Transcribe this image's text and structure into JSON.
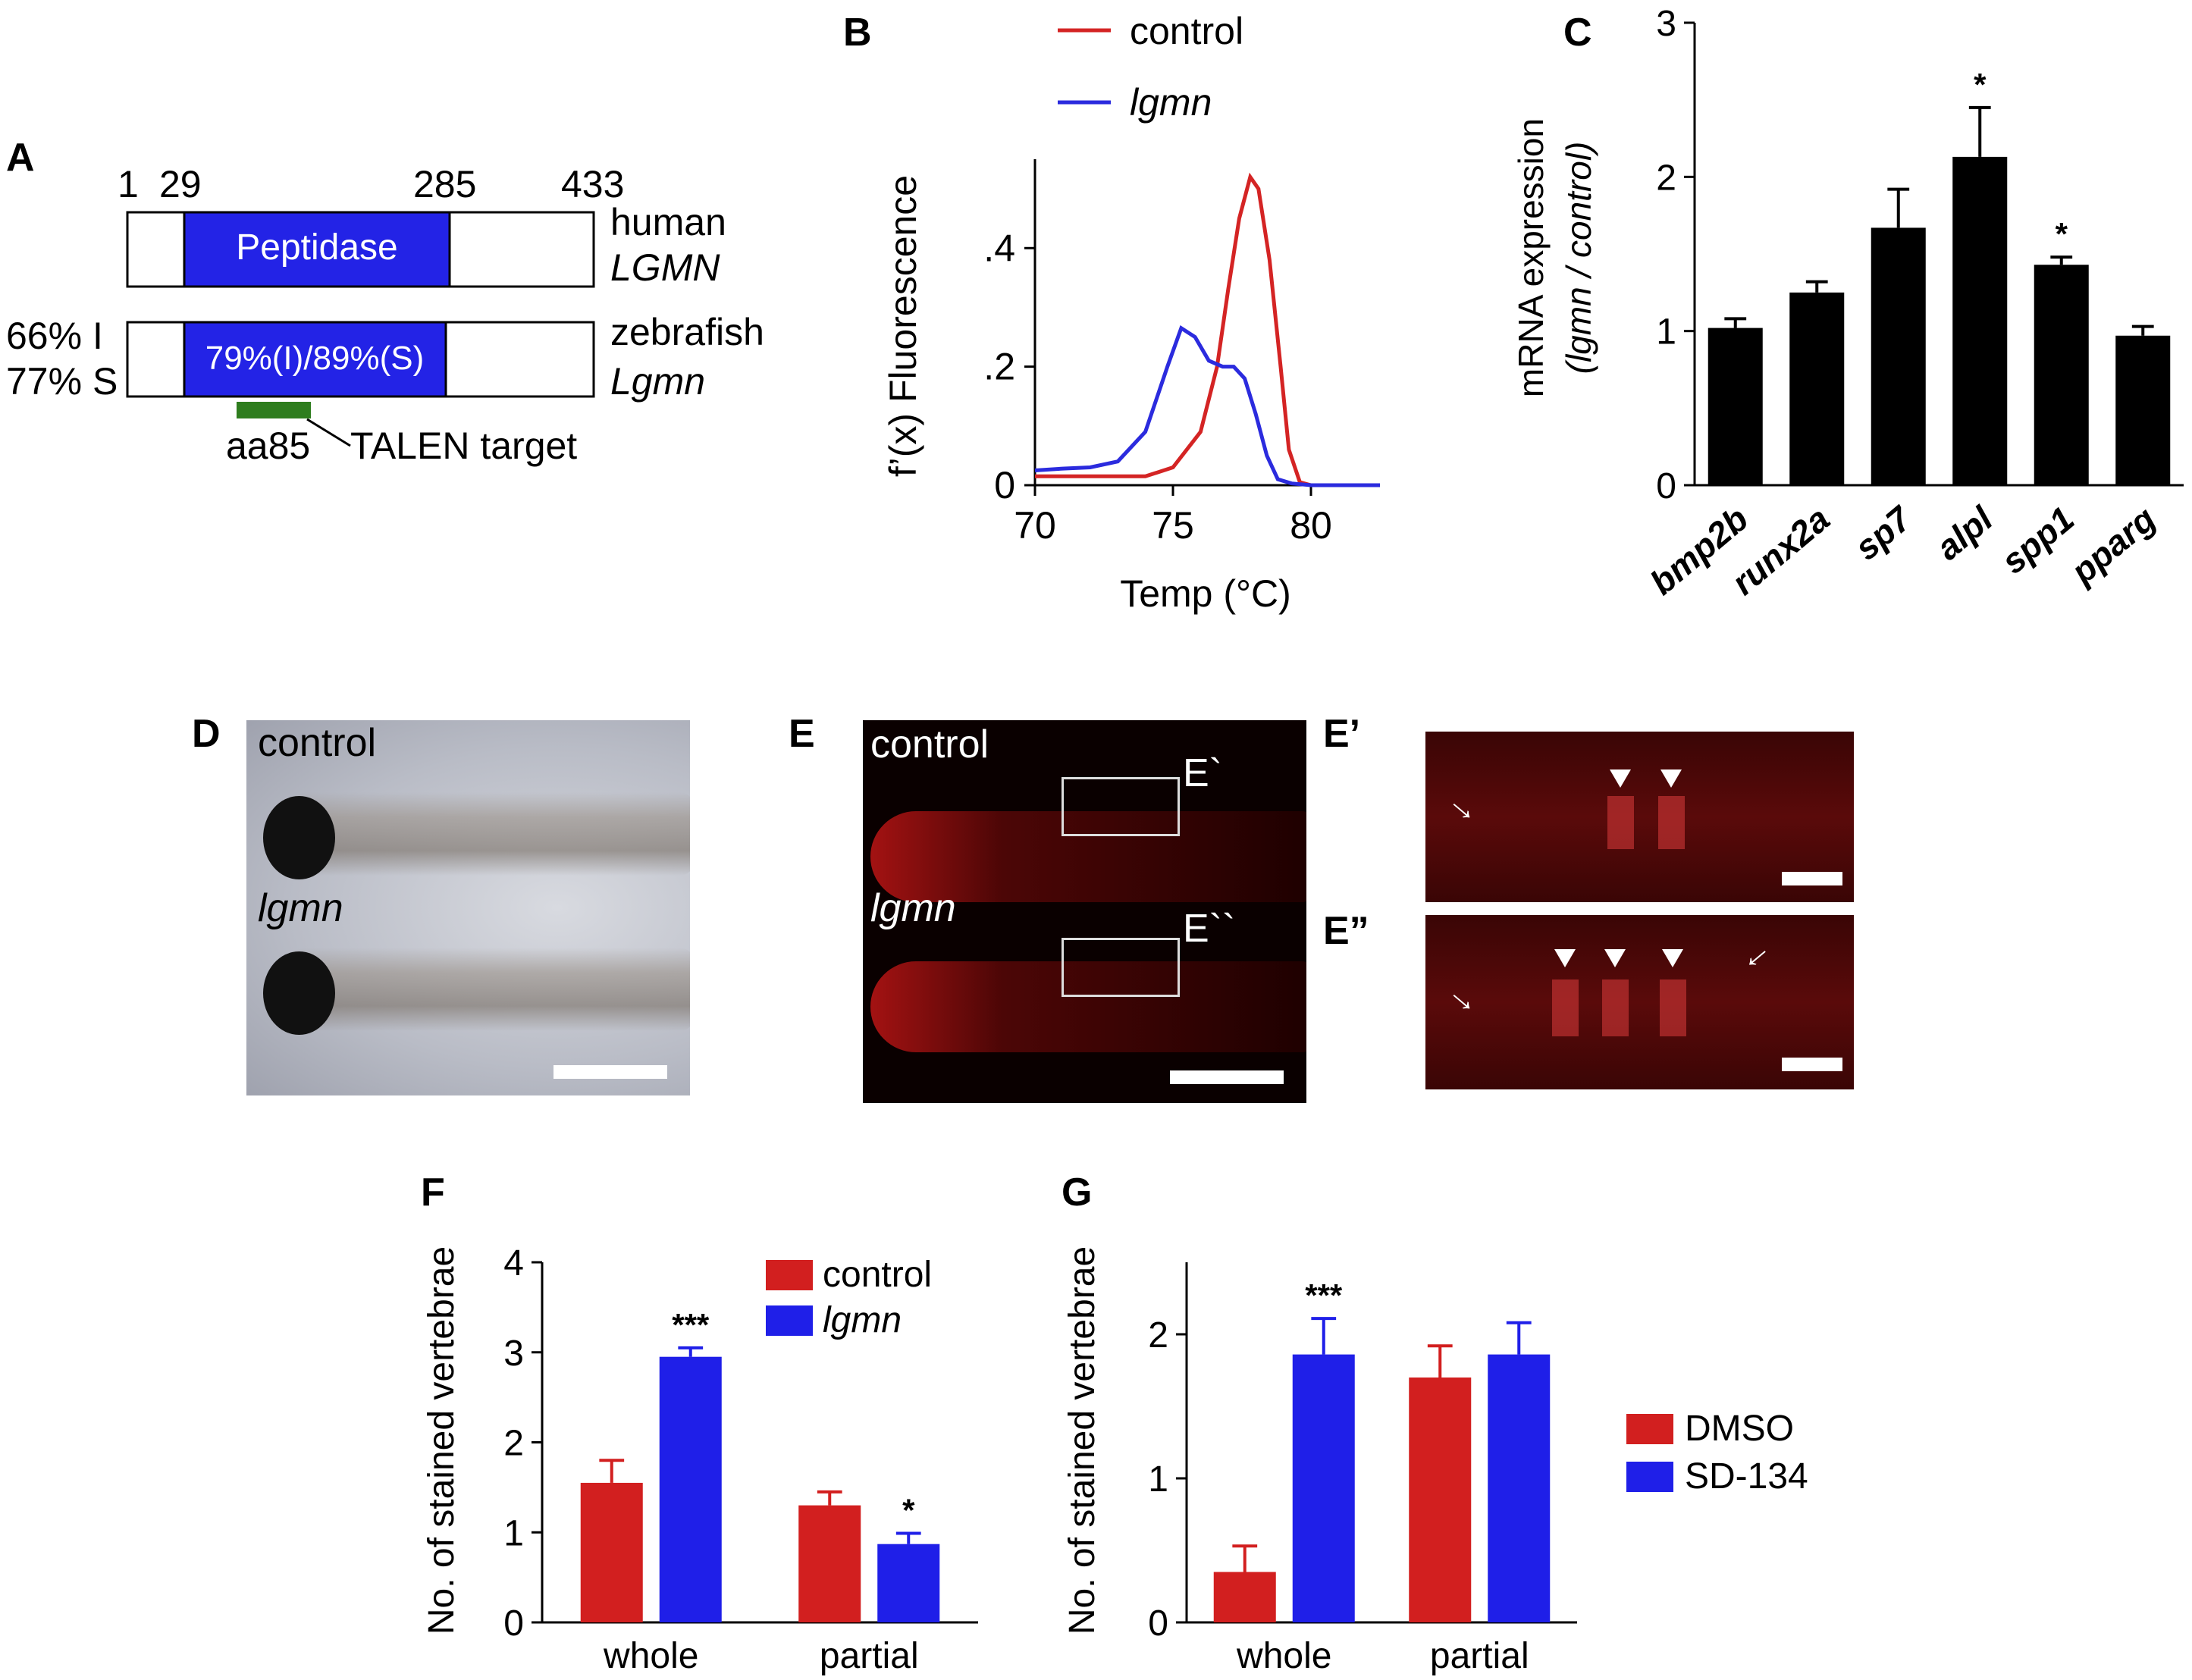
{
  "panels": {
    "A": "A",
    "B": "B",
    "C": "C",
    "D": "D",
    "E": "E",
    "Ep": "E’",
    "Epp": "E”",
    "F": "F",
    "G": "G"
  },
  "panel_a": {
    "positions": [
      "1",
      "29",
      "285",
      "433"
    ],
    "domain_human": "Peptidase",
    "domain_zebrafish": "79%(I)/89%(S)",
    "human_label_1": "human",
    "human_label_2": "LGMN",
    "zebrafish_label_1": "zebrafish",
    "zebrafish_label_2": "Lgmn",
    "identity": "66% I",
    "similarity": "77% S",
    "aa": "aa85",
    "talen": "TALEN target",
    "colors": {
      "domain": "#2323e6",
      "talen": "#2e7d1e"
    }
  },
  "photos": {
    "d_control": "control",
    "d_lgmn": "lgmn",
    "e_control": "control",
    "e_lgmn": "lgmn",
    "box1": "E`",
    "box2": "E``"
  },
  "chart_data": [
    {
      "panel": "B",
      "type": "line",
      "ylabel": "f’(x)  Fluorescence",
      "xlabel": "Temp (°C)",
      "xlim": [
        70,
        82.5
      ],
      "ylim": [
        0,
        0.55
      ],
      "xticks": [
        "70",
        "75",
        "80"
      ],
      "yticks": [
        "0",
        ".2",
        ".4"
      ],
      "legend_position": "top",
      "series": [
        {
          "name": "control",
          "color": "#d42424",
          "x": [
            70,
            72,
            74,
            75,
            76,
            76.6,
            77,
            77.4,
            77.8,
            78.1,
            78.5,
            78.9,
            79.2,
            79.6,
            80
          ],
          "y": [
            0.015,
            0.015,
            0.015,
            0.03,
            0.09,
            0.2,
            0.33,
            0.45,
            0.52,
            0.5,
            0.38,
            0.2,
            0.06,
            0.005,
            0
          ]
        },
        {
          "name": "lgmn",
          "color": "#2b2bde",
          "x": [
            70,
            71,
            72,
            73,
            74,
            74.8,
            75.3,
            75.8,
            76.3,
            76.8,
            77.2,
            77.6,
            78,
            78.4,
            78.8,
            79.3,
            80,
            81,
            82.5
          ],
          "y": [
            0.025,
            0.028,
            0.03,
            0.04,
            0.09,
            0.2,
            0.265,
            0.25,
            0.21,
            0.2,
            0.2,
            0.18,
            0.12,
            0.05,
            0.01,
            0.003,
            0,
            0,
            0
          ]
        }
      ]
    },
    {
      "panel": "C",
      "type": "bar",
      "ylabel": "mRNA expression",
      "ylabel2": "(lgmn / control)",
      "ylim": [
        0,
        3
      ],
      "yticks": [
        "0",
        "1",
        "2",
        "3"
      ],
      "categories": [
        "bmp2b",
        "runx2a",
        "sp7",
        "alpl",
        "spp1",
        "pparg"
      ],
      "values": [
        1.02,
        1.25,
        1.67,
        2.13,
        1.43,
        0.97
      ],
      "errors": [
        0.06,
        0.07,
        0.25,
        0.32,
        0.05,
        0.06
      ],
      "significance": [
        "",
        "",
        "",
        "*",
        "*",
        ""
      ],
      "color": "#000000"
    },
    {
      "panel": "F",
      "type": "bar",
      "ylabel": "No. of stained vertebrae",
      "ylim": [
        0,
        4
      ],
      "yticks": [
        "0",
        "1",
        "2",
        "3",
        "4"
      ],
      "categories": [
        "whole",
        "partial"
      ],
      "legend_position": "top-right",
      "series": [
        {
          "name": "control",
          "color": "#d21f1f",
          "values": [
            1.55,
            1.3
          ],
          "errors": [
            0.25,
            0.15
          ],
          "significance": [
            "",
            ""
          ]
        },
        {
          "name": "lgmn",
          "color": "#1f1fe8",
          "values": [
            2.95,
            0.87
          ],
          "errors": [
            0.1,
            0.12
          ],
          "significance": [
            "***",
            "*"
          ]
        }
      ]
    },
    {
      "panel": "G",
      "type": "bar",
      "ylabel": "No. of stained vertebrae",
      "ylim": [
        0,
        2.5
      ],
      "yticks": [
        "0",
        "1",
        "2"
      ],
      "categories": [
        "whole",
        "partial"
      ],
      "legend_position": "right",
      "series": [
        {
          "name": "DMSO",
          "color": "#d21f1f",
          "values": [
            0.35,
            1.7
          ],
          "errors": [
            0.18,
            0.22
          ],
          "significance": [
            "",
            ""
          ]
        },
        {
          "name": "SD-134",
          "color": "#1f1fe8",
          "values": [
            1.86,
            1.86
          ],
          "errors": [
            0.25,
            0.22
          ],
          "significance": [
            "***",
            ""
          ]
        }
      ]
    }
  ]
}
